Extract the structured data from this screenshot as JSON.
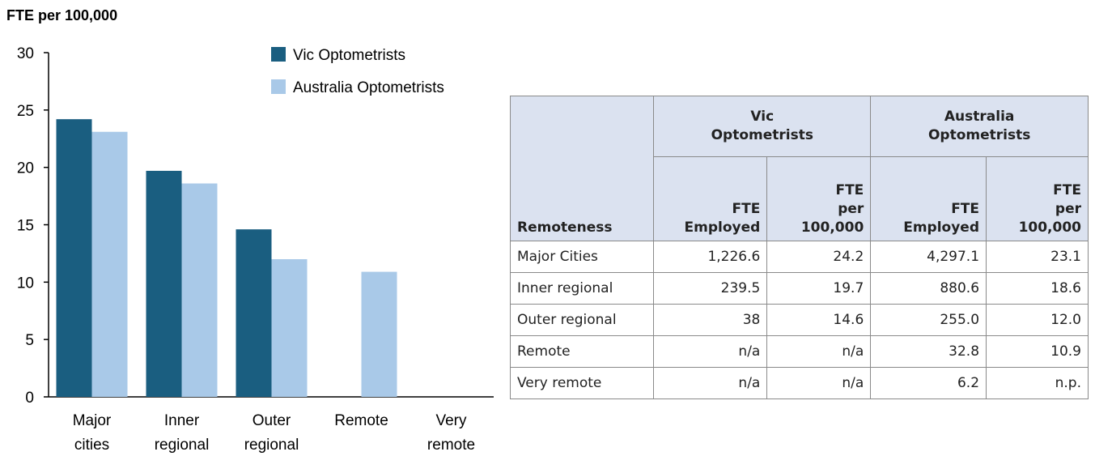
{
  "chart_data": {
    "type": "bar",
    "y_label": "FTE per 100,000",
    "categories": [
      "Major cities",
      "Inner regional",
      "Outer regional",
      "Remote",
      "Very remote"
    ],
    "series": [
      {
        "name": "Vic Optometrists",
        "color": "#1a5e80",
        "values": [
          24.2,
          19.7,
          14.6,
          null,
          null
        ]
      },
      {
        "name": "Australia Optometrists",
        "color": "#a9c9e8",
        "values": [
          23.1,
          18.6,
          12.0,
          10.9,
          null
        ]
      }
    ],
    "ylim": [
      0,
      30
    ],
    "yticks": [
      0,
      5,
      10,
      15,
      20,
      25,
      30
    ],
    "legend": "top-right"
  },
  "table": {
    "groups": [
      "Vic Optometrists",
      "Australia Optometrists"
    ],
    "columns": [
      "Remoteness",
      "FTE Employed",
      "FTE per 100,000",
      "FTE Employed",
      "FTE per 100,000"
    ],
    "rows": [
      [
        "Major Cities",
        "1,226.6",
        "24.2",
        "4,297.1",
        "23.1"
      ],
      [
        "Inner regional",
        "239.5",
        "19.7",
        "880.6",
        "18.6"
      ],
      [
        "Outer regional",
        "38",
        "14.6",
        "255.0",
        "12.0"
      ],
      [
        "Remote",
        "n/a",
        "n/a",
        "32.8",
        "10.9"
      ],
      [
        "Very remote",
        "n/a",
        "n/a",
        "6.2",
        "n.p."
      ]
    ]
  }
}
